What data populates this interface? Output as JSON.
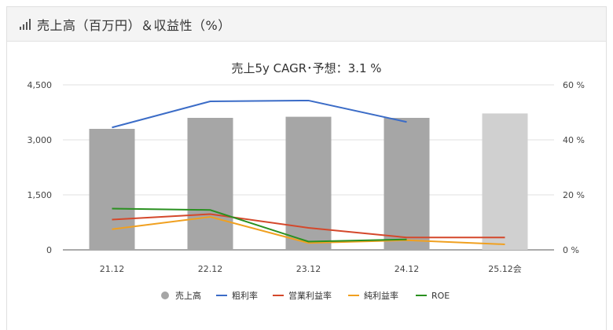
{
  "header": {
    "title": "売上高（百万円）＆収益性（%）"
  },
  "chart_data": {
    "type": "bar",
    "title": "売上5y CAGR･予想：3.1 %",
    "categories": [
      "21.12",
      "22.12",
      "23.12",
      "24.12",
      "25.12会"
    ],
    "ylim_left": [
      0,
      4500
    ],
    "ylim_right": [
      0,
      60
    ],
    "yticks_left": [
      "0",
      "1,500",
      "3,000",
      "4,500"
    ],
    "yticks_right": [
      "0 %",
      "20 %",
      "40 %",
      "60 %"
    ],
    "grid": true,
    "legend_position": "bottom",
    "bar_series": {
      "name": "売上高",
      "values": [
        3300,
        3600,
        3630,
        3600,
        3720
      ],
      "colors": [
        "#a6a6a6",
        "#a6a6a6",
        "#a6a6a6",
        "#a6a6a6",
        "#d0d0d0"
      ]
    },
    "line_series": [
      {
        "name": "粗利率",
        "color": "#3b6cc7",
        "values": [
          44.5,
          54,
          54.3,
          46.5,
          null
        ]
      },
      {
        "name": "営業利益率",
        "color": "#d4482b",
        "values": [
          11,
          13,
          8,
          4.5,
          4.5
        ]
      },
      {
        "name": "純利益率",
        "color": "#f0a020",
        "values": [
          7.5,
          12,
          2.5,
          3.5,
          2
        ]
      },
      {
        "name": "ROE",
        "color": "#2a9020",
        "values": [
          15,
          14.5,
          3,
          3.8,
          null
        ]
      }
    ]
  }
}
